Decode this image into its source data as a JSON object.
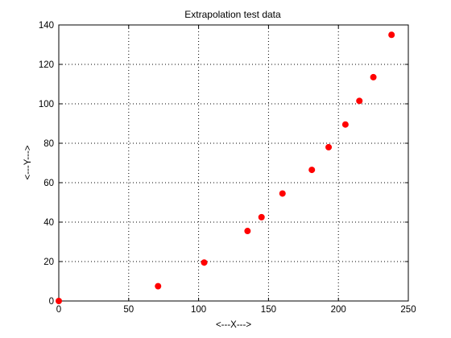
{
  "chart_data": {
    "type": "scatter",
    "title": "Extrapolation test data",
    "xlabel": "<---X--->",
    "ylabel": "<---Y--->",
    "xlim": [
      0,
      250
    ],
    "ylim": [
      0,
      140
    ],
    "xticks": [
      0,
      50,
      100,
      150,
      200,
      250
    ],
    "yticks": [
      0,
      20,
      40,
      60,
      80,
      100,
      120,
      140
    ],
    "grid": true,
    "marker_color": "#ff0000",
    "points": [
      {
        "x": 0,
        "y": 0
      },
      {
        "x": 71,
        "y": 7.5
      },
      {
        "x": 104,
        "y": 19.5
      },
      {
        "x": 135,
        "y": 35.5
      },
      {
        "x": 145,
        "y": 42.5
      },
      {
        "x": 160,
        "y": 54.5
      },
      {
        "x": 181,
        "y": 66.5
      },
      {
        "x": 193,
        "y": 78
      },
      {
        "x": 205,
        "y": 89.5
      },
      {
        "x": 215,
        "y": 101.5
      },
      {
        "x": 225,
        "y": 113.5
      },
      {
        "x": 238,
        "y": 135
      }
    ]
  }
}
